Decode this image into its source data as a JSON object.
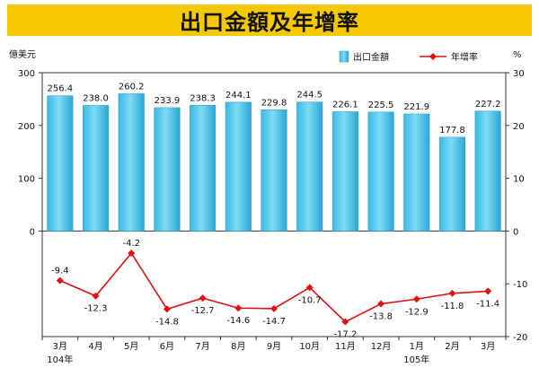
{
  "title": "出口金額及年增率",
  "chart_data": {
    "type": "bar+line",
    "title": "出口金額及年增率",
    "categories": [
      "3月",
      "4月",
      "5月",
      "6月",
      "7月",
      "8月",
      "9月",
      "10月",
      "11月",
      "12月",
      "1月",
      "2月",
      "3月"
    ],
    "year_labels": [
      {
        "index": 0,
        "text": "104年"
      },
      {
        "index": 10,
        "text": "105年"
      }
    ],
    "series": [
      {
        "name": "出口金額",
        "type": "bar",
        "axis": "left",
        "values": [
          256.4,
          238.0,
          260.2,
          233.9,
          238.3,
          244.1,
          229.8,
          244.5,
          226.1,
          225.5,
          221.9,
          177.8,
          227.2
        ],
        "labels": [
          "256.4",
          "238.0",
          "260.2",
          "233.9",
          "238.3",
          "244.1",
          "229.8",
          "244.5",
          "226.1",
          "225.5",
          "221.9",
          "177.8",
          "227.2"
        ]
      },
      {
        "name": "年增率",
        "type": "line",
        "axis": "right",
        "values": [
          -9.4,
          -12.3,
          -4.2,
          -14.8,
          -12.7,
          -14.6,
          -14.7,
          -10.7,
          -17.2,
          -13.8,
          -12.9,
          -11.8,
          -11.4
        ],
        "labels": [
          "-9.4",
          "-12.3",
          "-4.2",
          "-14.8",
          "-12.7",
          "-14.6",
          "-14.7",
          "-10.7",
          "-17.2",
          "-13.8",
          "-12.9",
          "-11.8",
          "-11.4"
        ]
      }
    ],
    "ylabel_left": "億美元",
    "ylabel_right": "%",
    "left_axis": {
      "range": [
        -200,
        300
      ],
      "ticks": [
        0,
        100,
        200,
        300
      ]
    },
    "right_axis": {
      "range": [
        -20,
        30
      ],
      "ticks": [
        -20,
        -10,
        0,
        10,
        20,
        30
      ]
    },
    "legend": {
      "placement": "top-right"
    },
    "grid": false,
    "colors": {
      "bar": "#4fc8ea",
      "bar_edge": "#2a9fc8",
      "line": "#e01010",
      "title_bg": "#f6c800"
    }
  }
}
